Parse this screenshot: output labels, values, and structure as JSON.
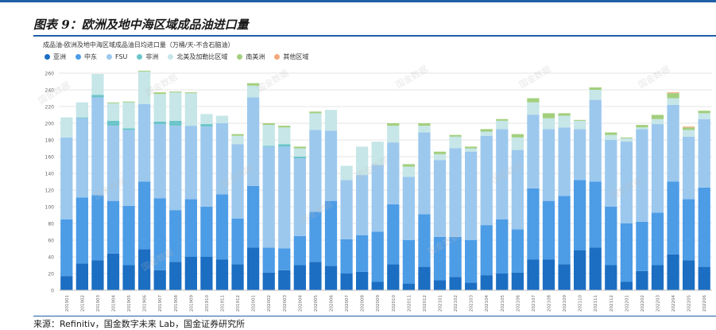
{
  "figure": {
    "title": "图表 9：欧洲及地中海区域成品油进口量",
    "source": "来源：Refinitiv，国金数字未来 Lab，国金证券研究所"
  },
  "chart_data": {
    "type": "bar",
    "stacked": true,
    "title": "成品油-欧洲及地中海区域成品油日均进口量（万桶/天-不含石脑油）",
    "xlabel": "",
    "ylabel": "",
    "ylim": [
      0,
      260
    ],
    "yticks": [
      0,
      20,
      40,
      60,
      80,
      100,
      120,
      140,
      160,
      180,
      200,
      220,
      240,
      260
    ],
    "grid": true,
    "legend_position": "top-left",
    "categories": [
      "201901",
      "201902",
      "201903",
      "201904",
      "201905",
      "201906",
      "201907",
      "201908",
      "201909",
      "201910",
      "201911",
      "201912",
      "202001",
      "202002",
      "202003",
      "202004",
      "202005",
      "202006",
      "202007",
      "202008",
      "202009",
      "202010",
      "202011",
      "202012",
      "202101",
      "202102",
      "202103",
      "202104",
      "202105",
      "202106",
      "202107",
      "202108",
      "202109",
      "202110",
      "202111",
      "202112",
      "202201",
      "202202",
      "202203",
      "202204",
      "202205",
      "202206"
    ],
    "series": [
      {
        "name": "亚洲",
        "color": "#1b6ec2",
        "values": [
          17,
          32,
          36,
          44,
          30,
          49,
          24,
          34,
          40,
          40,
          37,
          31,
          51,
          21,
          24,
          30,
          34,
          29,
          20,
          22,
          10,
          31,
          8,
          28,
          12,
          16,
          9,
          18,
          20,
          21,
          37,
          37,
          31,
          48,
          51,
          30,
          10,
          23,
          30,
          43,
          36,
          28
        ]
      },
      {
        "name": "中东",
        "color": "#4d9ce6",
        "values": [
          68,
          79,
          78,
          63,
          71,
          81,
          86,
          62,
          69,
          60,
          78,
          55,
          74,
          30,
          26,
          35,
          60,
          78,
          41,
          44,
          60,
          72,
          52,
          63,
          52,
          48,
          51,
          60,
          65,
          52,
          85,
          70,
          82,
          84,
          79,
          70,
          70,
          59,
          63,
          87,
          73,
          95
        ]
      },
      {
        "name": "FSU",
        "color": "#9cc8ee",
        "values": [
          98,
          95,
          117,
          90,
          91,
          93,
          89,
          101,
          88,
          96,
          85,
          89,
          106,
          121,
          122,
          93,
          98,
          84,
          71,
          72,
          80,
          74,
          76,
          98,
          92,
          106,
          106,
          107,
          108,
          95,
          88,
          86,
          82,
          61,
          98,
          80,
          98,
          111,
          106,
          92,
          75,
          82
        ]
      },
      {
        "name": "非洲",
        "color": "#6cc5c9",
        "values": [
          0,
          1,
          3,
          6,
          2,
          0,
          3,
          6,
          0,
          3,
          0,
          0,
          0,
          1,
          3,
          2,
          0,
          0,
          0,
          0,
          0,
          0,
          0,
          0,
          0,
          0,
          0,
          0,
          0,
          0,
          0,
          0,
          0,
          0,
          0,
          0,
          0,
          0,
          0,
          0,
          0,
          0
        ]
      },
      {
        "name": "北美及加勒比区域",
        "color": "#c6e6e8",
        "values": [
          24,
          18,
          25,
          21,
          31,
          39,
          33,
          34,
          39,
          12,
          9,
          10,
          14,
          25,
          20,
          10,
          20,
          25,
          17,
          34,
          28,
          20,
          12,
          8,
          7,
          14,
          4,
          5,
          10,
          15,
          15,
          13,
          14,
          10,
          12,
          6,
          4,
          2,
          6,
          8,
          8,
          7
        ]
      },
      {
        "name": "南美洲",
        "color": "#a3cf7d",
        "values": [
          0,
          0,
          0,
          1,
          1,
          1,
          2,
          1,
          1,
          0,
          0,
          2,
          3,
          2,
          2,
          2,
          2,
          0,
          0,
          0,
          0,
          3,
          3,
          3,
          3,
          2,
          2,
          3,
          2,
          4,
          5,
          6,
          3,
          1,
          3,
          3,
          1,
          3,
          5,
          6,
          3,
          3
        ]
      },
      {
        "name": "其他区域",
        "color": "#f3a87c",
        "values": [
          0,
          0,
          0,
          0,
          0,
          0,
          0,
          0,
          0,
          0,
          0,
          0,
          0,
          0,
          0,
          0,
          0,
          0,
          0,
          0,
          0,
          0,
          0,
          0,
          0,
          0,
          0,
          0,
          0,
          0,
          0,
          0,
          0,
          0,
          0,
          0,
          0,
          0,
          0,
          1,
          1,
          0
        ]
      }
    ]
  },
  "watermark": "国金数据"
}
